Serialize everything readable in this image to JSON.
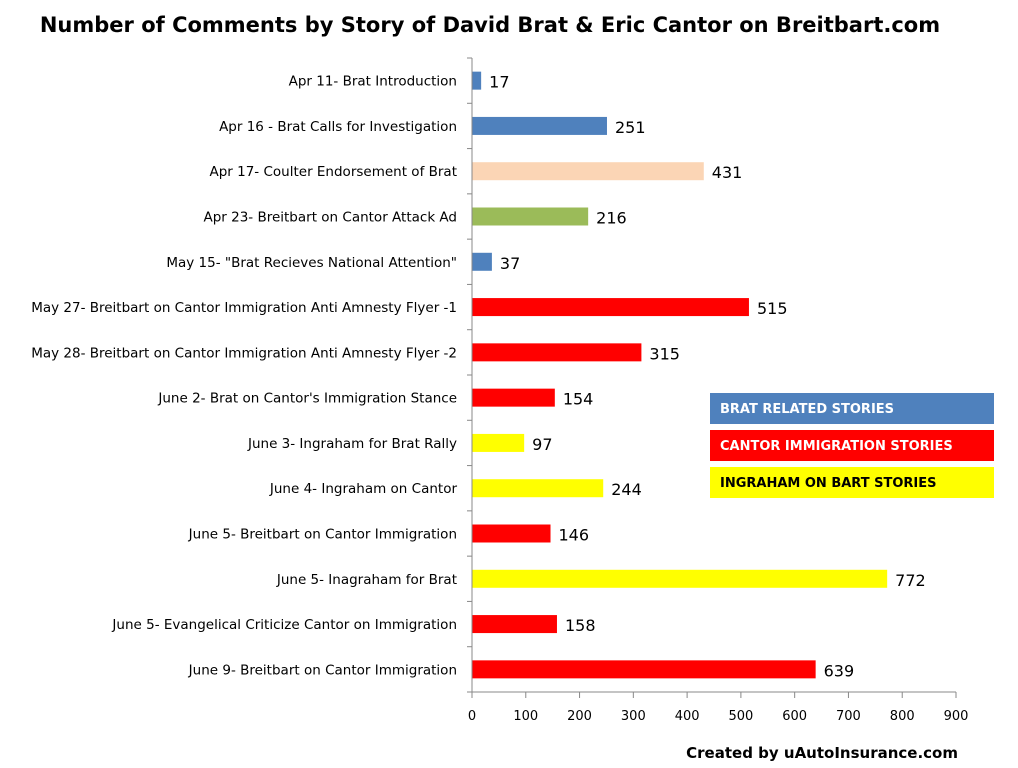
{
  "chart_data": {
    "type": "bar",
    "orientation": "horizontal",
    "title": "Number of Comments by Story of David Brat & Eric Cantor on Breitbart.com",
    "xlim": [
      0,
      900
    ],
    "x_ticks": [
      0,
      100,
      200,
      300,
      400,
      500,
      600,
      700,
      800,
      900
    ],
    "grid": false,
    "categories": [
      "Apr 11- Brat Introduction",
      "Apr 16 - Brat Calls for Investigation",
      "Apr 17- Coulter Endorsement of Brat",
      "Apr 23- Breitbart on Cantor Attack Ad",
      "May 15- \"Brat Recieves National Attention\"",
      "May 27- Breitbart on Cantor Immigration Anti Amnesty Flyer -1",
      "May 28- Breitbart on Cantor Immigration Anti Amnesty Flyer -2",
      "June 2- Brat on Cantor's Immigration Stance",
      "June 3- Ingraham for Brat Rally",
      "June 4- Ingraham on Cantor",
      "June 5- Breitbart on Cantor Immigration",
      "June 5- Inagraham for Brat",
      "June 5- Evangelical Criticize Cantor on Immigration",
      "June 9- Breitbart on Cantor Immigration"
    ],
    "values": [
      17,
      251,
      431,
      216,
      37,
      515,
      315,
      154,
      97,
      244,
      146,
      772,
      158,
      639
    ],
    "bar_colors": [
      "#4f81bd",
      "#4f81bd",
      "#fbd5b5",
      "#9bbb59",
      "#4f81bd",
      "#ff0000",
      "#ff0000",
      "#ff0000",
      "#ffff00",
      "#ffff00",
      "#ff0000",
      "#ffff00",
      "#ff0000",
      "#ff0000"
    ],
    "legend": {
      "placement": "right",
      "items": [
        {
          "label": "BRAT RELATED STORIES",
          "color": "#4f81bd",
          "text_color": "#ffffff"
        },
        {
          "label": "CANTOR IMMIGRATION STORIES",
          "color": "#ff0000",
          "text_color": "#ffffff"
        },
        {
          "label": "INGRAHAM ON BART STORIES",
          "color": "#ffff00",
          "text_color": "#000000"
        }
      ]
    }
  },
  "credit": "Created by uAutoInsurance.com"
}
